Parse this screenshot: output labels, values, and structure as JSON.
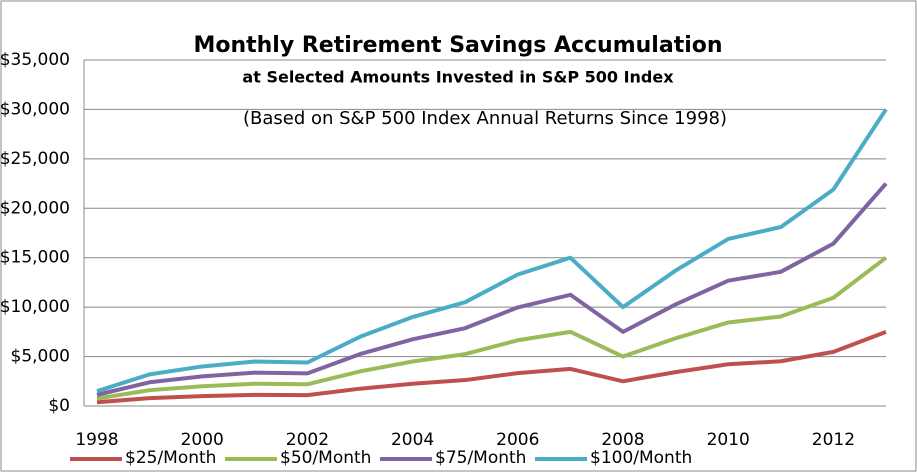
{
  "chart_data": {
    "type": "line",
    "title": "Monthly Retirement Savings Accumulation",
    "subtitle": "at Selected Amounts Invested in S&P 500 Index",
    "note": "(Based on S&P 500 Index Annual Returns Since 1998)",
    "categories": [
      "1998",
      null,
      "2000",
      null,
      "2002",
      null,
      "2004",
      null,
      "2006",
      null,
      "2008",
      null,
      "2010",
      null,
      "2012",
      null
    ],
    "series": [
      {
        "name": "$25/Month",
        "color": "#c0504d",
        "values": [
          375,
          800,
          1000,
          1125,
          1100,
          1750,
          2250,
          2625,
          3325,
          3750,
          2500,
          3425,
          4225,
          4525,
          5475,
          7500
        ]
      },
      {
        "name": "$50/Month",
        "color": "#9bbb59",
        "values": [
          750,
          1600,
          2000,
          2250,
          2200,
          3500,
          4500,
          5250,
          6650,
          7500,
          5000,
          6850,
          8450,
          9050,
          10950,
          15000
        ]
      },
      {
        "name": "$75/Month",
        "color": "#8064a2",
        "values": [
          1125,
          2400,
          3000,
          3375,
          3300,
          5250,
          6750,
          7875,
          9975,
          11250,
          7500,
          10275,
          12675,
          13575,
          16425,
          22500
        ]
      },
      {
        "name": "$100/Month",
        "color": "#4bacc6",
        "values": [
          1500,
          3200,
          4000,
          4500,
          4400,
          7000,
          9000,
          10500,
          13300,
          15000,
          10000,
          13700,
          16900,
          18100,
          21900,
          30000
        ]
      }
    ],
    "ylim": [
      0,
      35000
    ],
    "yticks": [
      {
        "value": 0,
        "label": "$0"
      },
      {
        "value": 5000,
        "label": "$5,000"
      },
      {
        "value": 10000,
        "label": "$10,000"
      },
      {
        "value": 15000,
        "label": "$15,000"
      },
      {
        "value": 20000,
        "label": "$20,000"
      },
      {
        "value": 25000,
        "label": "$25,000"
      },
      {
        "value": 30000,
        "label": "$30,000"
      },
      {
        "value": 35000,
        "label": "$35,000"
      }
    ],
    "grid": true,
    "legend": "bottom"
  }
}
